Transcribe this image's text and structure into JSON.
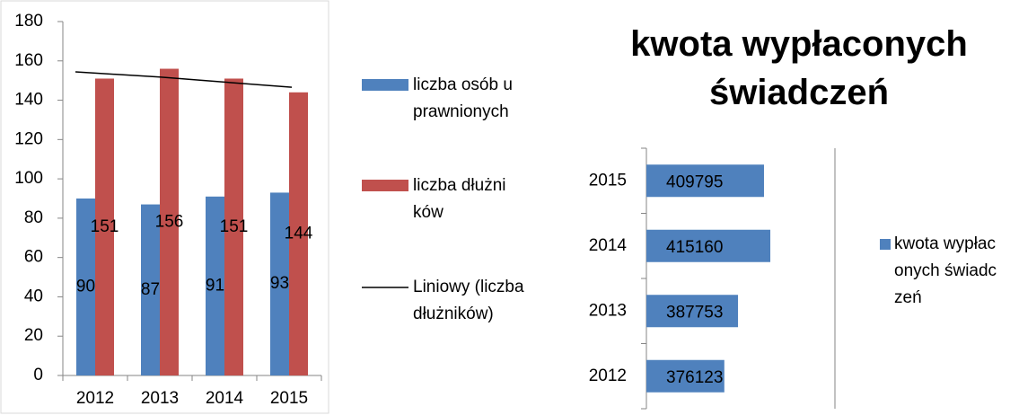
{
  "chart_data": [
    {
      "type": "bar",
      "categories": [
        "2012",
        "2013",
        "2014",
        "2015"
      ],
      "series": [
        {
          "name": "liczba osób uprawnionych",
          "color": "#4f81bd",
          "values": [
            90,
            87,
            91,
            93
          ]
        },
        {
          "name": "liczba dłużników",
          "color": "#c0504d",
          "values": [
            151,
            156,
            151,
            144
          ]
        },
        {
          "name": "Liniowy (liczba dłużników)",
          "type": "line",
          "color": "#000000",
          "values": [
            154.4,
            151.8,
            149.2,
            146.6
          ]
        }
      ],
      "ylim": [
        0,
        180
      ],
      "yticks": [
        0,
        20,
        40,
        60,
        80,
        100,
        120,
        140,
        160,
        180
      ],
      "legend": "right"
    },
    {
      "type": "barh",
      "title": "kwota wypłaconych świadczeń",
      "categories": [
        "2012",
        "2013",
        "2014",
        "2015"
      ],
      "series": [
        {
          "name": "kwota wypłaconych świadczeń",
          "color": "#4f81bd",
          "values": [
            376123,
            387753,
            415160,
            409795
          ]
        }
      ],
      "xlim": [
        310000,
        470000
      ],
      "legend": "right"
    }
  ]
}
